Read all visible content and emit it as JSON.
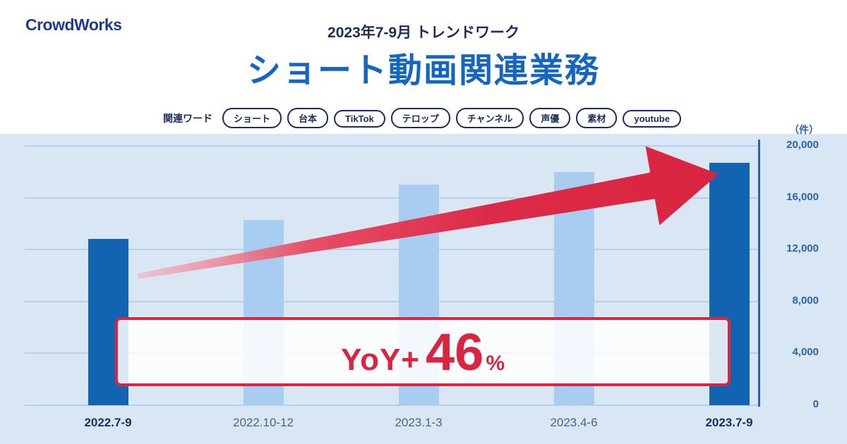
{
  "header": {
    "logo": "CrowdWorks",
    "subtitle": "2023年7-9月 トレンドワーク",
    "title": "ショート動画関連業務"
  },
  "keywords": {
    "label": "関連ワード",
    "tags": [
      "ショート",
      "台本",
      "TikTok",
      "テロップ",
      "チャンネル",
      "声優",
      "素材",
      "youtube"
    ]
  },
  "chart_data": {
    "type": "bar",
    "title": "ショート動画関連業務",
    "subtitle": "2023年7-9月 トレンドワーク",
    "unit_label": "（件）",
    "categories": [
      "2022.7-9",
      "2022.10-12",
      "2023.1-3",
      "2023.4-6",
      "2023.7-9"
    ],
    "values": [
      12800,
      14300,
      17000,
      18000,
      18700
    ],
    "highlighted": [
      true,
      false,
      false,
      false,
      true
    ],
    "ylim": [
      0,
      20000
    ],
    "yticks": [
      0,
      4000,
      8000,
      12000,
      16000,
      20000
    ],
    "ytick_labels": [
      "0",
      "4,000",
      "8,000",
      "12,000",
      "16,000",
      "20,000"
    ],
    "grid": true,
    "legend": false,
    "annotation": {
      "prefix": "YoY+",
      "value": "46",
      "suffix": "%"
    }
  },
  "colors": {
    "bar_dark": "#1263b2",
    "bar_light": "#a8cdf0",
    "accent_red": "#da2440",
    "arrow_red": "#dc2b49",
    "title_blue": "#1566c0",
    "navy": "#1b2d5e",
    "logo_navy": "#22398c",
    "bg_light": "#d9e7f5",
    "grid_line": "#b5d0ea",
    "axis_blue": "#2b62a8",
    "xlabel_gray": "#51608a"
  }
}
